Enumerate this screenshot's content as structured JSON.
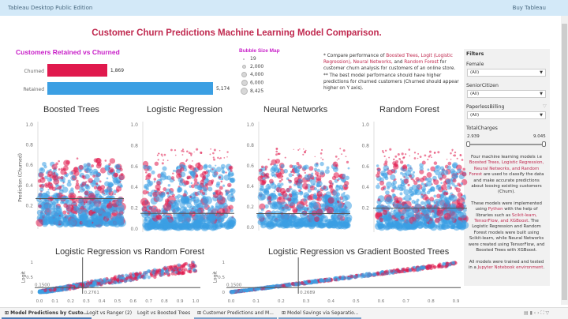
{
  "topbar": {
    "app_title": "Tableau Desktop Public Edition",
    "buy": "Buy Tableau"
  },
  "dashboard_title": "Customer Churn Predictions Machine Learning Model Comparison.",
  "retained_chart": {
    "title": "Customers Retained vs Churned",
    "bars": [
      {
        "label": "Churned",
        "value": 1869,
        "display": "1,869",
        "color": "#e0194d"
      },
      {
        "label": "Retained",
        "value": 5174,
        "display": "5,174",
        "color": "#3b9fe3"
      }
    ]
  },
  "bubble_map": {
    "title": "Bubble Size Map",
    "items": [
      "19",
      "2,000",
      "4,000",
      "6,000",
      "8,425"
    ]
  },
  "notes": {
    "l1a": "* Compare performance of ",
    "l1b": "Boosted Trees, Logit (Logistic Regression), Neural Networks,",
    "l1c": " and ",
    "l1d": "Random Forest",
    "l1e": " for customer churn analysis for customers of an online store.",
    "l2": "** The best model performance should have higher predictions for churned customers (Churned should appear higher on Y axis)."
  },
  "filters": {
    "title": "Filters",
    "items": [
      {
        "label": "Female",
        "value": "(All)"
      },
      {
        "label": "SeniorCitizen",
        "value": "(All)"
      },
      {
        "label": "PaperlessBilling",
        "value": "(All)"
      }
    ],
    "range": {
      "label": "TotalCharges",
      "min": "2.939",
      "max": "9.045"
    }
  },
  "description": {
    "p1a": "Four machine learning models i.e ",
    "p1b": "Boosted Trees, Logistic Regression, Neural Networks, and Random Forest",
    "p1c": " are used to classify the data and make accurate predictions about loosing existing customers (Churn).",
    "p2a": "These models were implemented using ",
    "p2b": "Python",
    "p2c": " with the help of libraries such as ",
    "p2d": "Scikit-learn, TensorFlow, and XGBoost",
    "p2e": ". The Logistic Regression and Random Forest models were built using Scikit-learn, while Neural Networks were created using TensorFlow, and Boosted Trees with XGBoost.",
    "p3a": "All models were trained and tested in a ",
    "p3b": "Jupyter Notebook environment",
    "p3c": "."
  },
  "colors": {
    "churned": "#e0194d",
    "retained": "#3b9fe3",
    "accent": "#c0294f"
  },
  "chart_data": [
    {
      "type": "scatter",
      "title": "Boosted Trees",
      "ylabel": "Prediction (Churned)",
      "ylim": [
        0,
        1
      ],
      "yticks": [
        "0.2",
        "0.4",
        "0.6",
        "0.8",
        "1.0"
      ],
      "threshold": 0.27
    },
    {
      "type": "scatter",
      "title": "Logistic Regression",
      "ylim": [
        0,
        1
      ],
      "yticks": [
        "0.0",
        "0.2",
        "0.4",
        "0.6",
        "0.8",
        "1.0"
      ],
      "threshold": 0.15
    },
    {
      "type": "scatter",
      "title": "Neural Networks",
      "ylim": [
        0,
        1
      ],
      "yticks": [
        "0.0",
        "0.2",
        "0.4",
        "0.6",
        "0.8",
        "1.0"
      ],
      "threshold": 0.135
    },
    {
      "type": "scatter",
      "title": "Random Forest",
      "ylim": [
        0,
        1
      ],
      "yticks": [
        "0.2",
        "0.4",
        "0.6",
        "0.8",
        "1.0"
      ],
      "threshold": 0.2
    },
    {
      "type": "scatter",
      "title": "Logistic Regression vs Random Forest",
      "ylabel": "Logit",
      "xlim": [
        0,
        1
      ],
      "ylim": [
        0,
        1
      ],
      "xticks": [
        "0.0",
        "0.1",
        "0.2",
        "0.3",
        "0.4",
        "0.5",
        "0.6",
        "0.7",
        "0.8",
        "0.9",
        "1.0"
      ],
      "yticks": [
        "0",
        "0.5",
        "1"
      ],
      "hline": "0.1500",
      "vline": "0.2761"
    },
    {
      "type": "scatter",
      "title": "Logistic Regression vs Gradient Boosted Trees",
      "ylabel": "Logit",
      "xlim": [
        0,
        0.9
      ],
      "ylim": [
        0,
        1
      ],
      "xticks": [
        "0.0",
        "0.1",
        "0.2",
        "0.3",
        "0.4",
        "0.5",
        "0.6",
        "0.7",
        "0.8",
        "0.9"
      ],
      "yticks": [
        "0",
        "0.5",
        "1"
      ],
      "hline": "0.1500",
      "vline": "0.2689"
    }
  ],
  "tabs": [
    "Model Predictions by Custo...",
    "Logit vs Ranger (2)",
    "Logit vs Boosted Trees",
    "Customer Predictions and M...",
    "Model Savings via Separatio..."
  ]
}
